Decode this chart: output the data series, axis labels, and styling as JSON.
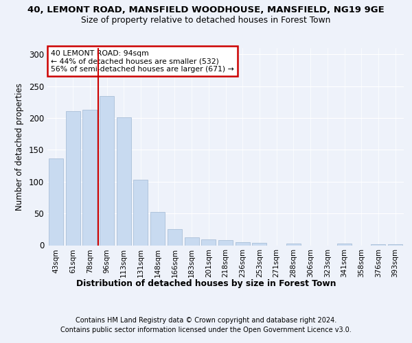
{
  "title1": "40, LEMONT ROAD, MANSFIELD WOODHOUSE, MANSFIELD, NG19 9GE",
  "title2": "Size of property relative to detached houses in Forest Town",
  "xlabel": "Distribution of detached houses by size in Forest Town",
  "ylabel": "Number of detached properties",
  "categories": [
    "43sqm",
    "61sqm",
    "78sqm",
    "96sqm",
    "113sqm",
    "131sqm",
    "148sqm",
    "166sqm",
    "183sqm",
    "201sqm",
    "218sqm",
    "236sqm",
    "253sqm",
    "271sqm",
    "288sqm",
    "306sqm",
    "323sqm",
    "341sqm",
    "358sqm",
    "376sqm",
    "393sqm"
  ],
  "values": [
    136,
    211,
    213,
    234,
    201,
    103,
    52,
    25,
    12,
    9,
    8,
    5,
    4,
    0,
    3,
    0,
    0,
    3,
    0,
    2,
    2
  ],
  "bar_color": "#c8daf0",
  "bar_edge_color": "#aabfd8",
  "vline_color": "#cc0000",
  "vline_pos": 3,
  "annotation_title": "40 LEMONT ROAD: 94sqm",
  "annotation_line2": "← 44% of detached houses are smaller (532)",
  "annotation_line3": "56% of semi-detached houses are larger (671) →",
  "annotation_box_color": "#cc0000",
  "ylim": [
    0,
    310
  ],
  "yticks": [
    0,
    50,
    100,
    150,
    200,
    250,
    300
  ],
  "footer1": "Contains HM Land Registry data © Crown copyright and database right 2024.",
  "footer2": "Contains public sector information licensed under the Open Government Licence v3.0.",
  "bg_color": "#eef2fa"
}
